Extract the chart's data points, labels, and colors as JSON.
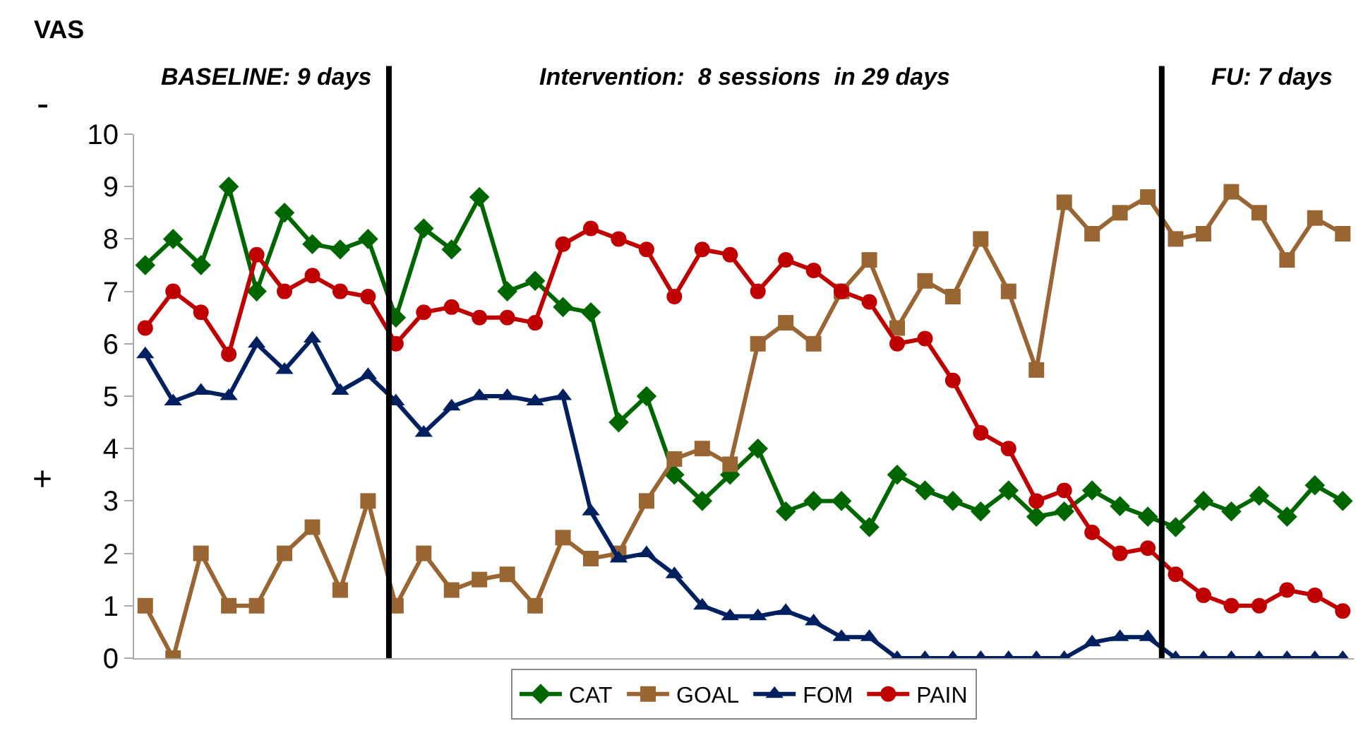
{
  "chart_data": {
    "type": "line",
    "ylabel": "VAS",
    "categories": [
      null,
      null,
      null,
      null,
      null,
      null,
      null,
      null,
      null,
      null,
      null,
      null,
      null,
      null,
      null,
      null,
      null,
      null,
      null,
      null,
      null,
      null,
      null,
      null,
      null,
      null,
      null,
      null,
      null,
      null,
      null,
      null,
      null,
      null,
      null,
      null,
      null,
      null,
      null,
      null,
      null,
      null,
      null,
      null
    ],
    "ylim": [
      0,
      10
    ],
    "yticks": [
      0,
      1,
      2,
      3,
      4,
      5,
      6,
      7,
      8,
      9,
      10
    ],
    "tick_labels": "y",
    "series": [
      {
        "name": "CAT",
        "color": "#006600",
        "marker": "diamond",
        "values": [
          7.5,
          8,
          7.5,
          9,
          7,
          8.5,
          7.9,
          7.8,
          8.0,
          6.5,
          8.2,
          7.8,
          8.8,
          7.0,
          7.2,
          6.7,
          6.6,
          4.5,
          5.0,
          3.5,
          3.0,
          3.5,
          4.0,
          2.8,
          3.0,
          3.0,
          2.5,
          3.5,
          3.2,
          3.0,
          2.8,
          3.2,
          2.7,
          2.8,
          3.2,
          2.9,
          2.7,
          2.5,
          3.0,
          2.8,
          3.1,
          2.7,
          3.3,
          3.0
        ]
      },
      {
        "name": "GOAL",
        "color": "#996633",
        "marker": "square",
        "values": [
          1,
          0,
          2,
          1,
          1,
          2,
          2.5,
          1.3,
          3.0,
          1.0,
          2.0,
          1.3,
          1.5,
          1.6,
          1.0,
          2.3,
          1.9,
          2.0,
          3.0,
          3.8,
          4.0,
          3.7,
          6.0,
          6.4,
          6.0,
          7.0,
          7.6,
          6.3,
          7.2,
          6.9,
          8.0,
          7.0,
          5.5,
          8.7,
          8.1,
          8.5,
          8.8,
          8.0,
          8.1,
          8.9,
          8.5,
          7.6,
          8.4,
          8.1
        ]
      },
      {
        "name": "FOM",
        "color": "#002060",
        "marker": "triangle",
        "values": [
          5.8,
          4.9,
          5.1,
          5.0,
          6.0,
          5.5,
          6.1,
          5.1,
          5.4,
          4.9,
          4.3,
          4.8,
          5.0,
          5.0,
          4.9,
          5.0,
          2.8,
          1.9,
          2.0,
          1.6,
          1.0,
          0.8,
          0.8,
          0.9,
          0.7,
          0.4,
          0.4,
          0,
          0,
          0,
          0,
          0,
          0,
          0,
          0.3,
          0.4,
          0.4,
          0,
          0,
          0,
          0,
          0,
          0,
          0
        ]
      },
      {
        "name": "PAIN",
        "color": "#c00000",
        "marker": "circle",
        "values": [
          6.3,
          7,
          6.6,
          5.8,
          7.7,
          7,
          7.3,
          7.0,
          6.9,
          6.0,
          6.6,
          6.7,
          6.5,
          6.5,
          6.4,
          7.9,
          8.2,
          8.0,
          7.8,
          6.9,
          7.8,
          7.7,
          7.0,
          7.6,
          7.4,
          7.0,
          6.8,
          6.0,
          6.1,
          5.3,
          4.3,
          4.0,
          3.0,
          3.2,
          2.4,
          2.0,
          2.1,
          1.6,
          1.2,
          1.0,
          1.0,
          1.3,
          1.2,
          0.9
        ]
      }
    ],
    "annotations": [
      "BASELINE: 9 days",
      "Intervention:  8 sessions  in 29 days",
      "FU: 7 days",
      "-",
      "+"
    ],
    "legend": "bottom",
    "line_style": "solid"
  }
}
